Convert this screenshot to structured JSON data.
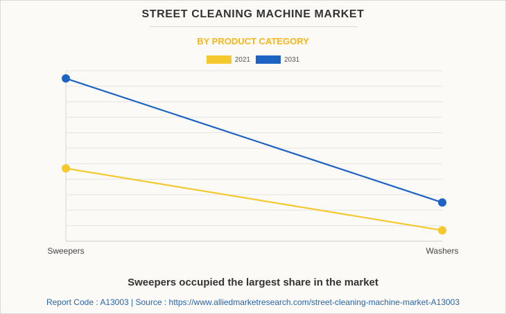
{
  "title": "STREET CLEANING MACHINE MARKET",
  "subtitle": "BY PRODUCT CATEGORY",
  "caption": "Sweepers occupied the largest share in the market",
  "footer": "Report Code : A13003  |  Source : https://www.alliedmarketresearch.com/street-cleaning-machine-market-A13003",
  "colors": {
    "accent": "#f6b51a",
    "series_2021": "#f5c92e",
    "series_2031": "#1d63c3",
    "grid": "#e3e3e3",
    "background": "#fbfaf6"
  },
  "chart_data": {
    "type": "line",
    "categories": [
      "Sweepers",
      "Washers"
    ],
    "series": [
      {
        "name": "2021",
        "values": [
          4.7,
          0.7
        ]
      },
      {
        "name": "2031",
        "values": [
          10.5,
          2.5
        ]
      }
    ],
    "ylim": [
      0,
      11
    ],
    "y_tick_labels_shown": false,
    "grid": "horizontal",
    "legend": "top-center"
  }
}
